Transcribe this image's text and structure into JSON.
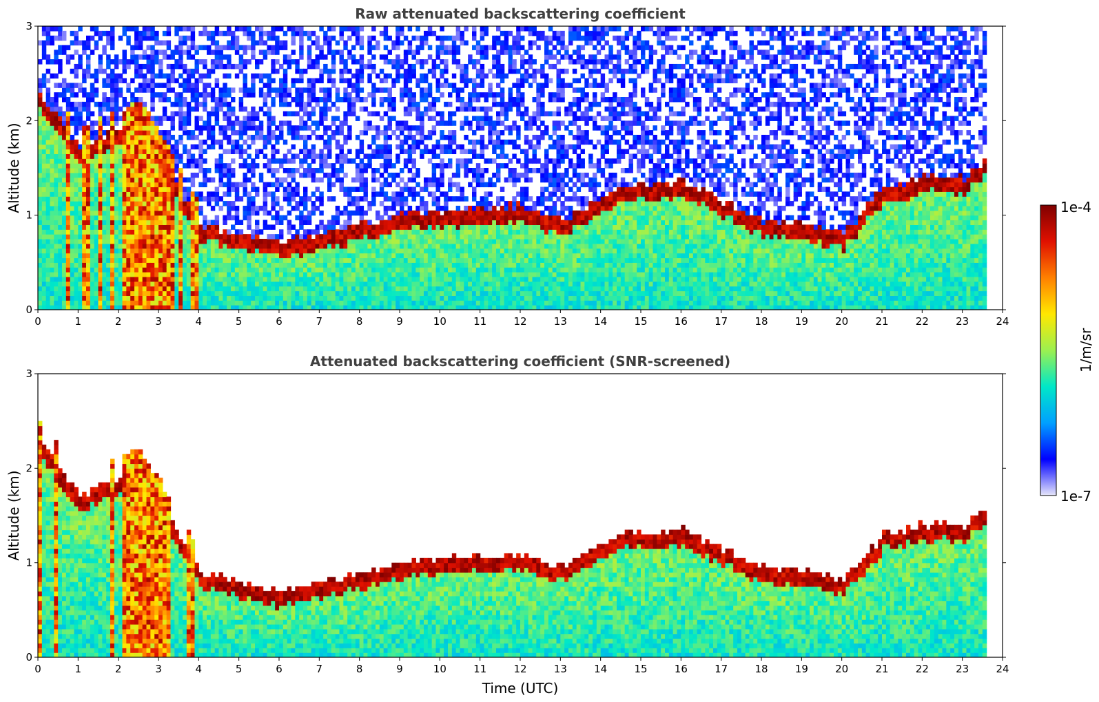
{
  "chart_data": [
    {
      "type": "heatmap",
      "title": "Raw attenuated backscattering coefficient",
      "xlabel": "",
      "ylabel": "Altitude (km)",
      "xlim": [
        0,
        24
      ],
      "ylim": [
        0,
        3
      ],
      "xticks": [
        "0",
        "1",
        "2",
        "3",
        "4",
        "5",
        "6",
        "7",
        "8",
        "9",
        "10",
        "11",
        "12",
        "13",
        "14",
        "15",
        "16",
        "17",
        "18",
        "19",
        "20",
        "21",
        "22",
        "23",
        "24"
      ],
      "yticks": [
        "0",
        "1",
        "2",
        "3"
      ],
      "data_end_time": 23.6,
      "noise_top": true,
      "boundary_layer_top_km": [
        {
          "t": 0,
          "z": 2.2
        },
        {
          "t": 0.5,
          "z": 1.9
        },
        {
          "t": 1,
          "z": 1.6
        },
        {
          "t": 2.5,
          "z": 1.9
        },
        {
          "t": 4,
          "z": 0.8
        },
        {
          "t": 6,
          "z": 0.6
        },
        {
          "t": 9,
          "z": 0.9
        },
        {
          "t": 12,
          "z": 1.0
        },
        {
          "t": 13,
          "z": 0.85
        },
        {
          "t": 14.5,
          "z": 1.2
        },
        {
          "t": 16,
          "z": 1.25
        },
        {
          "t": 17,
          "z": 1.05
        },
        {
          "t": 18,
          "z": 0.85
        },
        {
          "t": 19,
          "z": 0.8
        },
        {
          "t": 20,
          "z": 0.7
        },
        {
          "t": 21,
          "z": 1.2
        },
        {
          "t": 22,
          "z": 1.3
        },
        {
          "t": 23,
          "z": 1.3
        },
        {
          "t": 23.6,
          "z": 1.5
        }
      ]
    },
    {
      "type": "heatmap",
      "title": "Attenuated backscattering coefficient (SNR-screened)",
      "xlabel": "Time (UTC)",
      "ylabel": "Altitude (km)",
      "xlim": [
        0,
        24
      ],
      "ylim": [
        0,
        3
      ],
      "xticks": [
        "0",
        "1",
        "2",
        "3",
        "4",
        "5",
        "6",
        "7",
        "8",
        "9",
        "10",
        "11",
        "12",
        "13",
        "14",
        "15",
        "16",
        "17",
        "18",
        "19",
        "20",
        "21",
        "22",
        "23",
        "24"
      ],
      "yticks": [
        "0",
        "1",
        "2",
        "3"
      ],
      "data_end_time": 23.6,
      "noise_top": false,
      "boundary_layer_top_km": [
        {
          "t": 0,
          "z": 2.2
        },
        {
          "t": 0.5,
          "z": 1.9
        },
        {
          "t": 1,
          "z": 1.6
        },
        {
          "t": 2.5,
          "z": 1.9
        },
        {
          "t": 4,
          "z": 0.8
        },
        {
          "t": 6,
          "z": 0.6
        },
        {
          "t": 9,
          "z": 0.9
        },
        {
          "t": 12,
          "z": 1.0
        },
        {
          "t": 13,
          "z": 0.85
        },
        {
          "t": 14.5,
          "z": 1.2
        },
        {
          "t": 16,
          "z": 1.25
        },
        {
          "t": 17,
          "z": 1.05
        },
        {
          "t": 18,
          "z": 0.85
        },
        {
          "t": 19,
          "z": 0.8
        },
        {
          "t": 20,
          "z": 0.7
        },
        {
          "t": 21,
          "z": 1.2
        },
        {
          "t": 22,
          "z": 1.3
        },
        {
          "t": 23,
          "z": 1.3
        },
        {
          "t": 23.6,
          "z": 1.5
        }
      ]
    }
  ],
  "colorbar": {
    "label": "1/m/sr",
    "max_label": "1e-4",
    "min_label": "1e-7",
    "colors": [
      "#e6e6fa",
      "#0000ff",
      "#00a0ff",
      "#00e8c8",
      "#9cf050",
      "#ffe800",
      "#ff8000",
      "#e01000",
      "#7f0000"
    ]
  }
}
